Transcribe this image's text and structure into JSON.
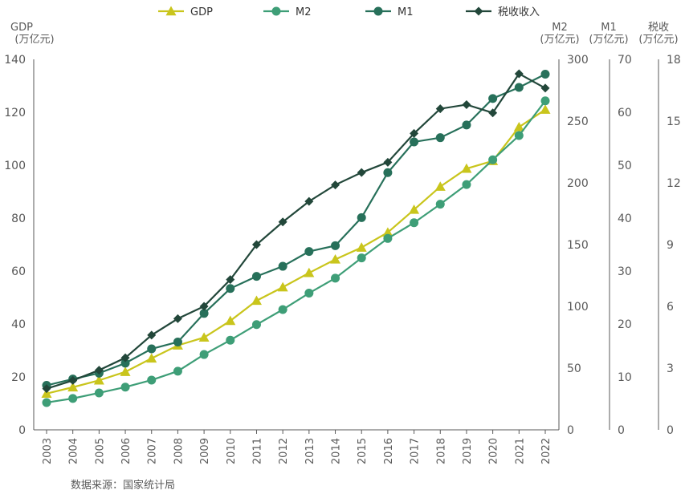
{
  "chart_data": {
    "type": "line",
    "categories": [
      "2003",
      "2004",
      "2005",
      "2006",
      "2007",
      "2008",
      "2009",
      "2010",
      "2011",
      "2012",
      "2013",
      "2014",
      "2015",
      "2016",
      "2017",
      "2018",
      "2019",
      "2020",
      "2021",
      "2022"
    ],
    "series": [
      {
        "name": "GDP",
        "axis": "left",
        "marker": "triangle",
        "color": "#C9C51C",
        "values": [
          13.7,
          16.1,
          18.7,
          21.9,
          27.0,
          31.9,
          34.9,
          41.2,
          48.8,
          53.9,
          59.3,
          64.4,
          68.9,
          74.6,
          83.2,
          91.9,
          98.7,
          101.6,
          114.4,
          121.0
        ]
      },
      {
        "name": "M2",
        "axis": "m2",
        "marker": "circle",
        "color": "#3E9E77",
        "values": [
          22.1,
          25.4,
          29.9,
          34.6,
          40.3,
          47.5,
          61.0,
          72.6,
          85.2,
          97.4,
          110.7,
          122.8,
          139.2,
          155.0,
          167.7,
          182.7,
          198.6,
          218.7,
          238.3,
          266.4
        ]
      },
      {
        "name": "M1",
        "axis": "m1",
        "marker": "circle",
        "color": "#27705A",
        "values": [
          8.4,
          9.6,
          10.7,
          12.6,
          15.3,
          16.6,
          22.0,
          26.7,
          29.0,
          30.9,
          33.7,
          34.8,
          40.1,
          48.6,
          54.4,
          55.2,
          57.6,
          62.6,
          64.7,
          67.2
        ]
      },
      {
        "name": "税收收入",
        "axis": "tax",
        "marker": "diamond",
        "color": "#22473A",
        "values": [
          2.0,
          2.4,
          2.9,
          3.5,
          4.6,
          5.4,
          6.0,
          7.3,
          9.0,
          10.1,
          11.1,
          11.9,
          12.5,
          13.0,
          14.4,
          15.6,
          15.8,
          15.4,
          17.3,
          16.6
        ]
      }
    ],
    "axes": {
      "left": {
        "title_line1": "GDP",
        "title_line2": "(万亿元)",
        "min": 0,
        "max": 140,
        "ticks": [
          0,
          20,
          40,
          60,
          80,
          100,
          120,
          140
        ]
      },
      "m2": {
        "title_line1": "M2",
        "title_line2": "(万亿元)",
        "min": 0,
        "max": 300,
        "ticks": [
          0,
          50,
          100,
          150,
          200,
          250,
          300
        ]
      },
      "m1": {
        "title_line1": "M1",
        "title_line2": "(万亿元)",
        "min": 0,
        "max": 70,
        "ticks": [
          0,
          10,
          20,
          30,
          40,
          50,
          60,
          70
        ]
      },
      "tax": {
        "title_line1": "税收",
        "title_line2": "(万亿元)",
        "min": 0,
        "max": 18,
        "ticks": [
          0,
          3,
          6,
          9,
          12,
          15,
          18
        ]
      }
    },
    "legend_position": "top",
    "grid": false
  },
  "source_note": "数据来源：国家统计局"
}
